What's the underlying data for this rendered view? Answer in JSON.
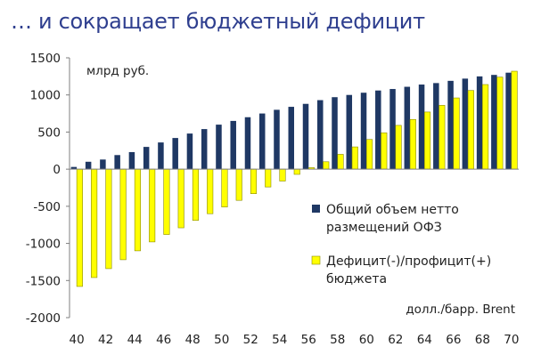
{
  "title": "… и сокращает бюджетный дефицит",
  "chart_data": {
    "type": "bar",
    "unit_label": "млрд руб.",
    "xlabel": "долл./барр. Brent",
    "ylim": [
      -2000,
      1500
    ],
    "yticks": [
      "1500",
      "1000",
      "500",
      "0",
      "-500",
      "-1000",
      "-1500",
      "-2000"
    ],
    "x": [
      40,
      41,
      42,
      43,
      44,
      45,
      46,
      47,
      48,
      49,
      50,
      51,
      52,
      53,
      54,
      55,
      56,
      57,
      58,
      59,
      60,
      61,
      62,
      63,
      64,
      65,
      66,
      67,
      68,
      69,
      70
    ],
    "xtick_labels": [
      "40",
      "42",
      "44",
      "46",
      "48",
      "50",
      "52",
      "54",
      "56",
      "58",
      "60",
      "62",
      "64",
      "66",
      "68",
      "70"
    ],
    "legend_position": "right",
    "series": [
      {
        "name": "Общий объем нетто размещений ОФЗ",
        "legend_lines": [
          "Общий объем нетто",
          "размещений ОФЗ"
        ],
        "color": "#1f3864",
        "values": [
          30,
          100,
          130,
          190,
          230,
          300,
          360,
          420,
          480,
          540,
          600,
          650,
          700,
          750,
          800,
          840,
          880,
          930,
          970,
          1000,
          1030,
          1060,
          1080,
          1110,
          1140,
          1160,
          1190,
          1220,
          1250,
          1270,
          1300
        ]
      },
      {
        "name": "Дефицит(-)/профицит(+) бюджета",
        "legend_lines": [
          "Дефицит(-)/профицит(+)",
          "бюджета"
        ],
        "color": "#ffff00",
        "values": [
          -1580,
          -1460,
          -1340,
          -1220,
          -1100,
          -980,
          -880,
          -790,
          -690,
          -600,
          -510,
          -420,
          -330,
          -240,
          -160,
          -70,
          20,
          100,
          200,
          300,
          400,
          490,
          590,
          670,
          770,
          860,
          960,
          1060,
          1140,
          1240,
          1320
        ]
      }
    ]
  }
}
